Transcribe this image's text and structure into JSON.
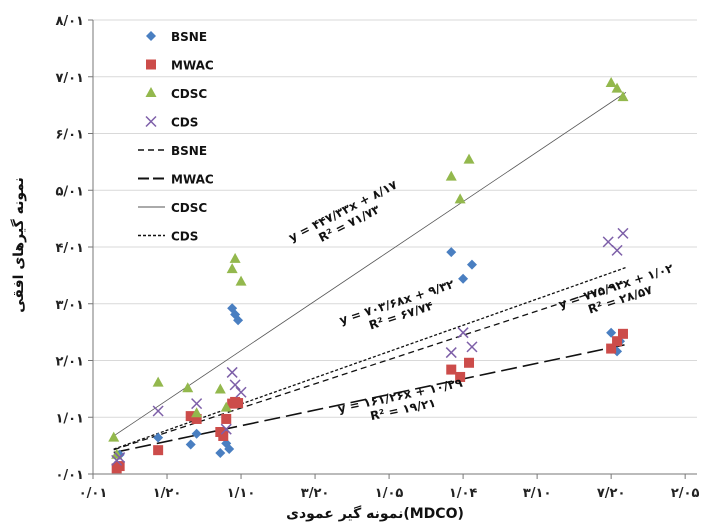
{
  "chart_data": {
    "type": "scatter",
    "title": "",
    "xlabel": "نمونه گیر عمودی(MDCO)",
    "ylabel": "نمونه گیرهای افقی",
    "xlim": [
      0.01,
      2.05
    ],
    "ylim": [
      0.01,
      8.01
    ],
    "x_ticks": [
      {
        "v": 0.01,
        "label": "۰/۰۱"
      },
      {
        "v": 0.26,
        "label": "۱/۲۰"
      },
      {
        "v": 0.51,
        "label": "۱/۱۰"
      },
      {
        "v": 0.76,
        "label": "۳/۲۰"
      },
      {
        "v": 1.01,
        "label": "۱/۰۵"
      },
      {
        "v": 1.26,
        "label": "۱/۰۴"
      },
      {
        "v": 1.51,
        "label": "۳/۱۰"
      },
      {
        "v": 1.76,
        "label": "۷/۲۰"
      },
      {
        "v": 2.01,
        "label": "۲/۰۵"
      }
    ],
    "y_ticks": [
      {
        "v": 0.01,
        "label": "۰/۰۱"
      },
      {
        "v": 1.01,
        "label": "۱/۰۱"
      },
      {
        "v": 2.01,
        "label": "۲/۰۱"
      },
      {
        "v": 3.01,
        "label": "۳/۰۱"
      },
      {
        "v": 4.01,
        "label": "۴/۰۱"
      },
      {
        "v": 5.01,
        "label": "۵/۰۱"
      },
      {
        "v": 6.01,
        "label": "۶/۰۱"
      },
      {
        "v": 7.01,
        "label": "۷/۰۱"
      },
      {
        "v": 8.01,
        "label": "۸/۰۱"
      }
    ],
    "legend_position": "top-left",
    "series": [
      {
        "name": "BSNE",
        "marker": "diamond",
        "color": "#4a7fc1",
        "points": [
          [
            0.1,
            0.35
          ],
          [
            0.23,
            0.65
          ],
          [
            0.34,
            0.53
          ],
          [
            0.36,
            0.72
          ],
          [
            0.44,
            0.38
          ],
          [
            0.45,
            0.75
          ],
          [
            0.46,
            0.55
          ],
          [
            0.47,
            0.45
          ],
          [
            0.48,
            2.93
          ],
          [
            0.49,
            2.82
          ],
          [
            0.5,
            2.72
          ],
          [
            1.22,
            3.92
          ],
          [
            1.26,
            3.45
          ],
          [
            1.29,
            3.7
          ],
          [
            1.76,
            2.5
          ],
          [
            1.78,
            2.17
          ],
          [
            1.79,
            2.35
          ]
        ]
      },
      {
        "name": "MWAC",
        "marker": "square",
        "color": "#cc4c4a",
        "points": [
          [
            0.09,
            0.11
          ],
          [
            0.1,
            0.15
          ],
          [
            0.23,
            0.43
          ],
          [
            0.34,
            1.03
          ],
          [
            0.36,
            0.98
          ],
          [
            0.44,
            0.75
          ],
          [
            0.45,
            0.68
          ],
          [
            0.46,
            0.98
          ],
          [
            0.48,
            1.25
          ],
          [
            0.49,
            1.28
          ],
          [
            0.5,
            1.26
          ],
          [
            1.22,
            1.85
          ],
          [
            1.25,
            1.72
          ],
          [
            1.28,
            1.97
          ],
          [
            1.76,
            2.22
          ],
          [
            1.78,
            2.35
          ],
          [
            1.8,
            2.48
          ]
        ]
      },
      {
        "name": "CDSC",
        "marker": "triangle",
        "color": "#93b84d",
        "points": [
          [
            0.08,
            0.65
          ],
          [
            0.09,
            0.35
          ],
          [
            0.23,
            1.62
          ],
          [
            0.33,
            1.52
          ],
          [
            0.36,
            1.08
          ],
          [
            0.44,
            1.5
          ],
          [
            0.46,
            1.18
          ],
          [
            0.48,
            3.62
          ],
          [
            0.49,
            3.8
          ],
          [
            0.51,
            3.4
          ],
          [
            1.22,
            5.25
          ],
          [
            1.25,
            4.85
          ],
          [
            1.28,
            5.55
          ],
          [
            1.76,
            6.9
          ],
          [
            1.78,
            6.8
          ],
          [
            1.8,
            6.65
          ]
        ]
      },
      {
        "name": "CDS",
        "marker": "x",
        "color": "#7d5fa8",
        "points": [
          [
            0.09,
            0.25
          ],
          [
            0.1,
            0.3
          ],
          [
            0.23,
            1.12
          ],
          [
            0.36,
            1.25
          ],
          [
            0.46,
            0.8
          ],
          [
            0.48,
            1.8
          ],
          [
            0.49,
            1.58
          ],
          [
            0.51,
            1.45
          ],
          [
            1.22,
            2.15
          ],
          [
            1.26,
            2.5
          ],
          [
            1.29,
            2.25
          ],
          [
            1.75,
            4.1
          ],
          [
            1.78,
            3.95
          ],
          [
            1.8,
            4.25
          ]
        ]
      }
    ],
    "trendlines": [
      {
        "name": "BSNE",
        "style": "short-dash",
        "slope": 1.71,
        "intercept": 0.3,
        "x_range": [
          0.08,
          1.81
        ]
      },
      {
        "name": "MWAC",
        "style": "long-dash",
        "slope": 1.1,
        "intercept": 0.3,
        "x_range": [
          0.08,
          1.81
        ]
      },
      {
        "name": "CDSC",
        "style": "solid",
        "slope": 3.5,
        "intercept": 0.4,
        "x_range": [
          0.08,
          1.81
        ]
      },
      {
        "name": "CDS",
        "style": "dotted",
        "slope": 1.85,
        "intercept": 0.3,
        "x_range": [
          0.08,
          1.81
        ]
      }
    ],
    "equations": [
      {
        "eq": "y = ۴۴۷/۳۳x + ۸/۱۷",
        "r2": "R² = ۷۱/۷۳",
        "anchor": [
          0.86,
          4.58
        ],
        "angle": -27
      },
      {
        "eq": "y = ۷۰۳/۶۸x + ۹/۳۲",
        "r2": "R² = ۶۷/۷۴",
        "anchor": [
          1.04,
          2.97
        ],
        "angle": -18
      },
      {
        "eq": "y = ۷۷۵/۹۲x + ۱/۰۲",
        "r2": "R² = ۲۸/۵۷",
        "anchor": [
          1.78,
          3.25
        ],
        "angle": -18
      },
      {
        "eq": "y = ۱۶۱/۲۶x + ۱۰/۲۹",
        "r2": "R² = ۱۹/۲۱",
        "anchor": [
          1.05,
          1.32
        ],
        "angle": -12
      }
    ],
    "legend_line_labels": [
      "BSNE",
      "MWAC",
      "CDSC",
      "CDS"
    ]
  }
}
